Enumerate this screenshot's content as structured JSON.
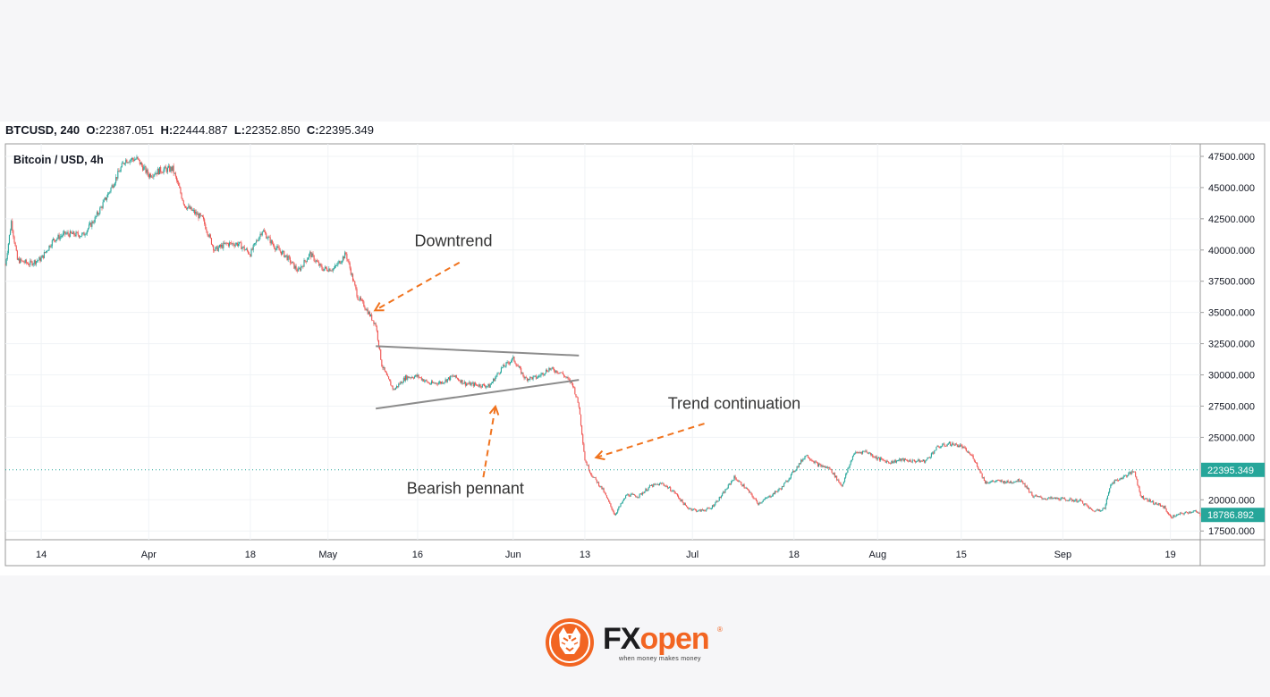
{
  "header": {
    "symbol": "BTCUSD, 240",
    "o_label": "O:",
    "o_value": "22387.051",
    "h_label": "H:",
    "h_value": "22444.887",
    "l_label": "L:",
    "l_value": "22352.850",
    "c_label": "C:",
    "c_value": "22395.349"
  },
  "logo": {
    "fx": "FX",
    "open": "open",
    "reg": "®",
    "tagline": "when money makes money",
    "icon": "tiger-head-icon"
  },
  "colors": {
    "up": "#26a69a",
    "down": "#ef5350",
    "annotation": "#f0731e",
    "pennant": "#8c8c8c",
    "price_badge": "#26a69a",
    "brand": "#f26522"
  },
  "chart_data": {
    "type": "candlestick",
    "title": "Bitcoin / USD, 4h",
    "y_range": [
      16800,
      48500
    ],
    "y_ticks": [
      "47500.000",
      "45000.000",
      "42500.000",
      "40000.000",
      "37500.000",
      "35000.000",
      "32500.000",
      "30000.000",
      "27500.000",
      "25000.000",
      "20000.000",
      "17500.000"
    ],
    "x_tick_labels": [
      "14",
      "Apr",
      "18",
      "May",
      "16",
      "Jun",
      "13",
      "Jul",
      "18",
      "Aug",
      "15",
      "Sep",
      "19"
    ],
    "x_tick_dates": [
      "2022-03-14",
      "2022-04-01",
      "2022-04-18",
      "2022-05-01",
      "2022-05-16",
      "2022-06-01",
      "2022-06-13",
      "2022-07-01",
      "2022-07-18",
      "2022-08-01",
      "2022-08-15",
      "2022-09-01",
      "2022-09-19"
    ],
    "x_range": [
      "2022-03-08",
      "2022-09-24"
    ],
    "last_price": "22395.349",
    "current_price": "18786.892",
    "price_path": [
      [
        "2022-03-08",
        38800
      ],
      [
        "2022-03-09",
        42300
      ],
      [
        "2022-03-10",
        39200
      ],
      [
        "2022-03-12",
        38900
      ],
      [
        "2022-03-14",
        39300
      ],
      [
        "2022-03-16",
        40800
      ],
      [
        "2022-03-18",
        41300
      ],
      [
        "2022-03-21",
        41200
      ],
      [
        "2022-03-23",
        42500
      ],
      [
        "2022-03-25",
        44300
      ],
      [
        "2022-03-28",
        47200
      ],
      [
        "2022-03-30",
        47300
      ],
      [
        "2022-04-01",
        46000
      ],
      [
        "2022-04-03",
        46400
      ],
      [
        "2022-04-05",
        46500
      ],
      [
        "2022-04-07",
        43600
      ],
      [
        "2022-04-10",
        42500
      ],
      [
        "2022-04-12",
        40000
      ],
      [
        "2022-04-14",
        40500
      ],
      [
        "2022-04-16",
        40500
      ],
      [
        "2022-04-18",
        39700
      ],
      [
        "2022-04-20",
        41600
      ],
      [
        "2022-04-22",
        40300
      ],
      [
        "2022-04-24",
        39500
      ],
      [
        "2022-04-26",
        38300
      ],
      [
        "2022-04-28",
        39700
      ],
      [
        "2022-04-30",
        38500
      ],
      [
        "2022-05-02",
        38500
      ],
      [
        "2022-05-04",
        39700
      ],
      [
        "2022-05-06",
        36200
      ],
      [
        "2022-05-07",
        35600
      ],
      [
        "2022-05-09",
        34000
      ],
      [
        "2022-05-10",
        30800
      ],
      [
        "2022-05-11",
        29700
      ],
      [
        "2022-05-12",
        28800
      ],
      [
        "2022-05-14",
        29800
      ],
      [
        "2022-05-16",
        29900
      ],
      [
        "2022-05-18",
        29300
      ],
      [
        "2022-05-20",
        29400
      ],
      [
        "2022-05-22",
        29900
      ],
      [
        "2022-05-24",
        29300
      ],
      [
        "2022-05-26",
        29200
      ],
      [
        "2022-05-28",
        29100
      ],
      [
        "2022-05-30",
        30500
      ],
      [
        "2022-06-01",
        31300
      ],
      [
        "2022-06-03",
        29700
      ],
      [
        "2022-06-05",
        29800
      ],
      [
        "2022-06-07",
        30500
      ],
      [
        "2022-06-09",
        30200
      ],
      [
        "2022-06-11",
        29200
      ],
      [
        "2022-06-12",
        27500
      ],
      [
        "2022-06-13",
        23200
      ],
      [
        "2022-06-14",
        22100
      ],
      [
        "2022-06-16",
        20800
      ],
      [
        "2022-06-18",
        18800
      ],
      [
        "2022-06-20",
        20400
      ],
      [
        "2022-06-22",
        20300
      ],
      [
        "2022-06-24",
        21100
      ],
      [
        "2022-06-26",
        21300
      ],
      [
        "2022-06-28",
        20600
      ],
      [
        "2022-06-30",
        19400
      ],
      [
        "2022-07-02",
        19100
      ],
      [
        "2022-07-04",
        19300
      ],
      [
        "2022-07-06",
        20400
      ],
      [
        "2022-07-08",
        21800
      ],
      [
        "2022-07-10",
        20900
      ],
      [
        "2022-07-12",
        19700
      ],
      [
        "2022-07-14",
        20300
      ],
      [
        "2022-07-16",
        21000
      ],
      [
        "2022-07-18",
        22300
      ],
      [
        "2022-07-20",
        23600
      ],
      [
        "2022-07-22",
        22800
      ],
      [
        "2022-07-24",
        22500
      ],
      [
        "2022-07-26",
        21100
      ],
      [
        "2022-07-28",
        23700
      ],
      [
        "2022-07-30",
        23900
      ],
      [
        "2022-08-01",
        23300
      ],
      [
        "2022-08-03",
        23000
      ],
      [
        "2022-08-05",
        23200
      ],
      [
        "2022-08-07",
        23100
      ],
      [
        "2022-08-09",
        23100
      ],
      [
        "2022-08-11",
        24200
      ],
      [
        "2022-08-13",
        24500
      ],
      [
        "2022-08-15",
        24300
      ],
      [
        "2022-08-17",
        23400
      ],
      [
        "2022-08-19",
        21400
      ],
      [
        "2022-08-21",
        21500
      ],
      [
        "2022-08-23",
        21400
      ],
      [
        "2022-08-25",
        21600
      ],
      [
        "2022-08-27",
        20300
      ],
      [
        "2022-08-29",
        20100
      ],
      [
        "2022-08-31",
        20100
      ],
      [
        "2022-09-02",
        20000
      ],
      [
        "2022-09-04",
        19900
      ],
      [
        "2022-09-06",
        19100
      ],
      [
        "2022-09-08",
        19300
      ],
      [
        "2022-09-09",
        21300
      ],
      [
        "2022-09-11",
        21800
      ],
      [
        "2022-09-13",
        22300
      ],
      [
        "2022-09-14",
        20300
      ],
      [
        "2022-09-16",
        19800
      ],
      [
        "2022-09-18",
        19400
      ],
      [
        "2022-09-19",
        18600
      ],
      [
        "2022-09-21",
        18900
      ],
      [
        "2022-09-23",
        19100
      ],
      [
        "2022-09-24",
        18787
      ]
    ],
    "annotations": [
      {
        "label": "Downtrend",
        "text_at": [
          "2022-05-22",
          40300
        ],
        "arrow_from": [
          "2022-05-23",
          39000
        ],
        "arrow_to": [
          "2022-05-09",
          35200
        ]
      },
      {
        "label": "Bearish pennant",
        "text_at": [
          "2022-05-24",
          20500
        ],
        "arrow_from": [
          "2022-05-27",
          21800
        ],
        "arrow_to": [
          "2022-05-29",
          27400
        ]
      },
      {
        "label": "Trend continuation",
        "text_at": [
          "2022-07-08",
          27300
        ],
        "arrow_from": [
          "2022-07-03",
          26100
        ],
        "arrow_to": [
          "2022-06-15",
          23400
        ]
      }
    ],
    "pennant": {
      "upper": [
        [
          "2022-05-09",
          32300
        ],
        [
          "2022-06-12",
          31550
        ]
      ],
      "lower": [
        [
          "2022-05-09",
          27300
        ],
        [
          "2022-06-12",
          29600
        ]
      ]
    },
    "grid": true,
    "legend": "none"
  }
}
